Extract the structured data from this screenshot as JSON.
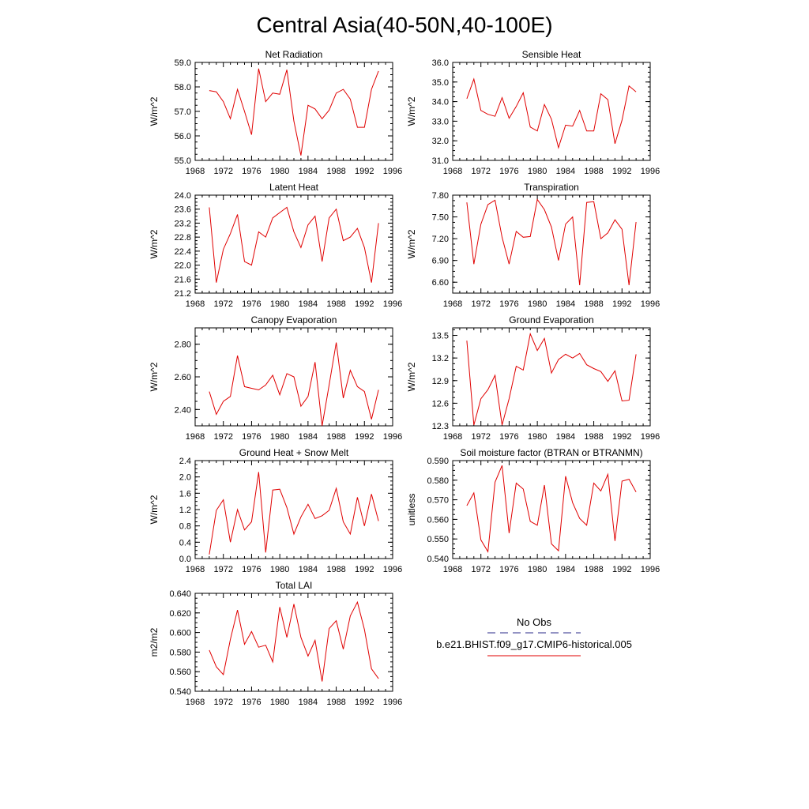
{
  "title": "Central Asia(40-50N,40-100E)",
  "legend": {
    "obs_label": "No Obs",
    "model_label": "b.e21.BHIST.f09_g17.CMIP6-historical.005",
    "obs_color": "#2a2a8a",
    "model_color": "#e00000"
  },
  "chart_data": [
    {
      "type": "line",
      "title": "Net Radiation",
      "ylabel": "W/m^2",
      "xlim": [
        1968,
        1996
      ],
      "ylim": [
        55.0,
        59.0
      ],
      "xticks": [
        "1968",
        "1972",
        "1976",
        "1980",
        "1984",
        "1988",
        "1992",
        "1996"
      ],
      "yticks": [
        "55.0",
        "56.0",
        "57.0",
        "58.0",
        "59.0"
      ],
      "series": [
        {
          "color": "#e00000",
          "x": [
            1970,
            1971,
            1972,
            1973,
            1974,
            1975,
            1976,
            1977,
            1978,
            1979,
            1980,
            1981,
            1982,
            1983,
            1984,
            1985,
            1986,
            1987,
            1988,
            1989,
            1990,
            1991,
            1992,
            1993,
            1994
          ],
          "values": [
            57.85,
            57.8,
            57.4,
            56.7,
            57.9,
            57.0,
            56.05,
            58.75,
            57.4,
            57.75,
            57.7,
            58.7,
            56.6,
            55.2,
            57.25,
            57.1,
            56.7,
            57.05,
            57.75,
            57.9,
            57.5,
            56.35,
            56.35,
            57.9,
            58.65
          ]
        }
      ]
    },
    {
      "type": "line",
      "title": "Sensible Heat",
      "ylabel": "W/m^2",
      "xlim": [
        1968,
        1996
      ],
      "ylim": [
        31.0,
        36.0
      ],
      "xticks": [
        "1968",
        "1972",
        "1976",
        "1980",
        "1984",
        "1988",
        "1992",
        "1996"
      ],
      "yticks": [
        "31.0",
        "32.0",
        "33.0",
        "34.0",
        "35.0",
        "36.0"
      ],
      "series": [
        {
          "color": "#e00000",
          "x": [
            1970,
            1971,
            1972,
            1973,
            1974,
            1975,
            1976,
            1977,
            1978,
            1979,
            1980,
            1981,
            1982,
            1983,
            1984,
            1985,
            1986,
            1987,
            1988,
            1989,
            1990,
            1991,
            1992,
            1993,
            1994
          ],
          "values": [
            34.15,
            35.15,
            33.55,
            33.35,
            33.25,
            34.2,
            33.15,
            33.75,
            34.45,
            32.7,
            32.5,
            33.85,
            33.1,
            31.65,
            32.8,
            32.75,
            33.55,
            32.5,
            32.5,
            34.4,
            34.1,
            31.85,
            33.05,
            34.8,
            34.5
          ]
        }
      ]
    },
    {
      "type": "line",
      "title": "Latent Heat",
      "ylabel": "W/m^2",
      "xlim": [
        1968,
        1996
      ],
      "ylim": [
        21.2,
        24.0
      ],
      "xticks": [
        "1968",
        "1972",
        "1976",
        "1980",
        "1984",
        "1988",
        "1992",
        "1996"
      ],
      "yticks": [
        "21.2",
        "21.6",
        "22.0",
        "22.4",
        "22.8",
        "23.2",
        "23.6",
        "24.0"
      ],
      "series": [
        {
          "color": "#e00000",
          "x": [
            1970,
            1971,
            1972,
            1973,
            1974,
            1975,
            1976,
            1977,
            1978,
            1979,
            1980,
            1981,
            1982,
            1983,
            1984,
            1985,
            1986,
            1987,
            1988,
            1989,
            1990,
            1991,
            1992,
            1993,
            1994
          ],
          "values": [
            23.65,
            21.5,
            22.45,
            22.9,
            23.45,
            22.1,
            22.0,
            22.95,
            22.8,
            23.35,
            23.5,
            23.65,
            22.95,
            22.5,
            23.15,
            23.4,
            22.1,
            23.35,
            23.6,
            22.7,
            22.8,
            23.05,
            22.5,
            21.5,
            23.2
          ]
        }
      ]
    },
    {
      "type": "line",
      "title": "Transpiration",
      "ylabel": "W/m^2",
      "xlim": [
        1968,
        1996
      ],
      "ylim": [
        6.45,
        7.8
      ],
      "xticks": [
        "1968",
        "1972",
        "1976",
        "1980",
        "1984",
        "1988",
        "1992",
        "1996"
      ],
      "yticks": [
        "6.60",
        "6.90",
        "7.20",
        "7.50",
        "7.80"
      ],
      "series": [
        {
          "color": "#e00000",
          "x": [
            1970,
            1971,
            1972,
            1973,
            1974,
            1975,
            1976,
            1977,
            1978,
            1979,
            1980,
            1981,
            1982,
            1983,
            1984,
            1985,
            1986,
            1987,
            1988,
            1989,
            1990,
            1991,
            1992,
            1993,
            1994
          ],
          "values": [
            7.7,
            6.85,
            7.4,
            7.67,
            7.73,
            7.22,
            6.85,
            7.3,
            7.22,
            7.23,
            7.74,
            7.6,
            7.36,
            6.9,
            7.4,
            7.5,
            6.56,
            7.7,
            7.71,
            7.2,
            7.28,
            7.46,
            7.33,
            6.56,
            7.43
          ]
        }
      ]
    },
    {
      "type": "line",
      "title": "Canopy Evaporation",
      "ylabel": "W/m^2",
      "xlim": [
        1968,
        1996
      ],
      "ylim": [
        2.3,
        2.9
      ],
      "xticks": [
        "1968",
        "1972",
        "1976",
        "1980",
        "1984",
        "1988",
        "1992",
        "1996"
      ],
      "yticks": [
        "2.40",
        "2.60",
        "2.80"
      ],
      "series": [
        {
          "color": "#e00000",
          "x": [
            1970,
            1971,
            1972,
            1973,
            1974,
            1975,
            1976,
            1977,
            1978,
            1979,
            1980,
            1981,
            1982,
            1983,
            1984,
            1985,
            1986,
            1987,
            1988,
            1989,
            1990,
            1991,
            1992,
            1993,
            1994
          ],
          "values": [
            2.51,
            2.37,
            2.45,
            2.48,
            2.73,
            2.54,
            2.53,
            2.52,
            2.55,
            2.61,
            2.49,
            2.62,
            2.6,
            2.42,
            2.48,
            2.69,
            2.3,
            2.55,
            2.81,
            2.47,
            2.64,
            2.54,
            2.51,
            2.34,
            2.52
          ]
        }
      ]
    },
    {
      "type": "line",
      "title": "Ground Evaporation",
      "ylabel": "W/m^2",
      "xlim": [
        1968,
        1996
      ],
      "ylim": [
        12.3,
        13.6
      ],
      "xticks": [
        "1968",
        "1972",
        "1976",
        "1980",
        "1984",
        "1988",
        "1992",
        "1996"
      ],
      "yticks": [
        "12.3",
        "12.6",
        "12.9",
        "13.2",
        "13.5"
      ],
      "series": [
        {
          "color": "#e00000",
          "x": [
            1970,
            1971,
            1972,
            1973,
            1974,
            1975,
            1976,
            1977,
            1978,
            1979,
            1980,
            1981,
            1982,
            1983,
            1984,
            1985,
            1986,
            1987,
            1988,
            1989,
            1990,
            1991,
            1992,
            1993,
            1994
          ],
          "values": [
            13.43,
            12.31,
            12.66,
            12.78,
            12.97,
            12.31,
            12.66,
            13.09,
            13.04,
            13.52,
            13.3,
            13.46,
            13.0,
            13.18,
            13.25,
            13.2,
            13.26,
            13.11,
            13.06,
            13.02,
            12.89,
            13.03,
            12.63,
            12.64,
            13.25
          ]
        }
      ]
    },
    {
      "type": "line",
      "title": "Ground Heat + Snow Melt",
      "ylabel": "W/m^2",
      "xlim": [
        1968,
        1996
      ],
      "ylim": [
        0.0,
        2.4
      ],
      "xticks": [
        "1968",
        "1972",
        "1976",
        "1980",
        "1984",
        "1988",
        "1992",
        "1996"
      ],
      "yticks": [
        "0.0",
        "0.4",
        "0.8",
        "1.2",
        "1.6",
        "2.0",
        "2.4"
      ],
      "series": [
        {
          "color": "#e00000",
          "x": [
            1970,
            1971,
            1972,
            1973,
            1974,
            1975,
            1976,
            1977,
            1978,
            1979,
            1980,
            1981,
            1982,
            1983,
            1984,
            1985,
            1986,
            1987,
            1988,
            1989,
            1990,
            1991,
            1992,
            1993,
            1994
          ],
          "values": [
            0.1,
            1.18,
            1.44,
            0.4,
            1.2,
            0.7,
            0.9,
            2.12,
            0.15,
            1.68,
            1.7,
            1.25,
            0.6,
            1.02,
            1.33,
            0.98,
            1.05,
            1.18,
            1.72,
            0.9,
            0.6,
            1.5,
            0.8,
            1.58,
            0.92
          ]
        }
      ]
    },
    {
      "type": "line",
      "title": "Soil moisture factor (BTRAN or BTRANMN)",
      "ylabel": "unitless",
      "xlim": [
        1968,
        1996
      ],
      "ylim": [
        0.54,
        0.59
      ],
      "xticks": [
        "1968",
        "1972",
        "1976",
        "1980",
        "1984",
        "1988",
        "1992",
        "1996"
      ],
      "yticks": [
        "0.540",
        "0.550",
        "0.560",
        "0.570",
        "0.580",
        "0.590"
      ],
      "series": [
        {
          "color": "#e00000",
          "x": [
            1970,
            1971,
            1972,
            1973,
            1974,
            1975,
            1976,
            1977,
            1978,
            1979,
            1980,
            1981,
            1982,
            1983,
            1984,
            1985,
            1986,
            1987,
            1988,
            1989,
            1990,
            1991,
            1992,
            1993,
            1994
          ],
          "values": [
            0.567,
            0.5735,
            0.5495,
            0.5435,
            0.579,
            0.5875,
            0.553,
            0.5785,
            0.5755,
            0.559,
            0.557,
            0.5775,
            0.5475,
            0.544,
            0.582,
            0.5685,
            0.5605,
            0.557,
            0.5785,
            0.5745,
            0.583,
            0.549,
            0.5795,
            0.5805,
            0.574
          ]
        }
      ]
    },
    {
      "type": "line",
      "title": "Total LAI",
      "ylabel": "m2/m2",
      "xlim": [
        1968,
        1996
      ],
      "ylim": [
        0.54,
        0.64
      ],
      "xticks": [
        "1968",
        "1972",
        "1976",
        "1980",
        "1984",
        "1988",
        "1992",
        "1996"
      ],
      "yticks": [
        "0.540",
        "0.560",
        "0.580",
        "0.600",
        "0.620",
        "0.640"
      ],
      "series": [
        {
          "color": "#e00000",
          "x": [
            1970,
            1971,
            1972,
            1973,
            1974,
            1975,
            1976,
            1977,
            1978,
            1979,
            1980,
            1981,
            1982,
            1983,
            1984,
            1985,
            1986,
            1987,
            1988,
            1989,
            1990,
            1991,
            1992,
            1993,
            1994
          ],
          "values": [
            0.582,
            0.565,
            0.557,
            0.593,
            0.623,
            0.588,
            0.601,
            0.585,
            0.587,
            0.57,
            0.626,
            0.595,
            0.629,
            0.595,
            0.576,
            0.592,
            0.55,
            0.604,
            0.612,
            0.583,
            0.617,
            0.631,
            0.603,
            0.563,
            0.553
          ]
        }
      ]
    }
  ]
}
